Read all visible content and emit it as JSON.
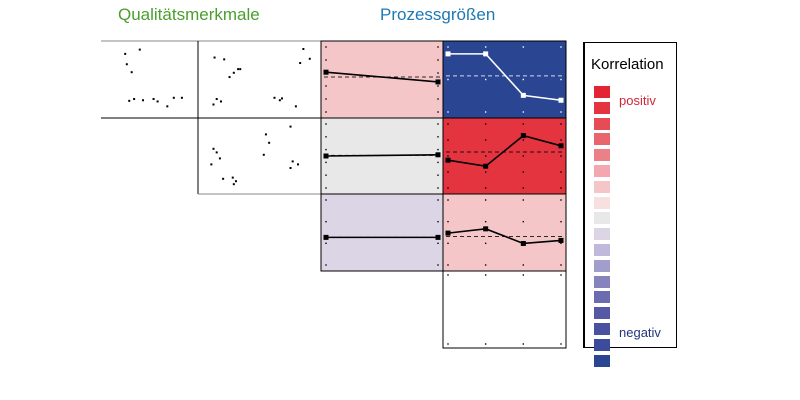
{
  "headings": {
    "quality": "Qualitätsmerkmale",
    "process": "Prozessgrößen"
  },
  "colors": {
    "quality_heading": "#4a9e2e",
    "process_heading": "#1d79b3",
    "positive_label": "#d0253a",
    "negative_label": "#23347e",
    "line": "#000000",
    "strong_negative_line": "#ffffff"
  },
  "matrix": {
    "scatter_cells": [
      {
        "id": "r1c1",
        "points": [
          [
            0.2,
            0.92
          ],
          [
            0.38,
            0.99
          ],
          [
            0.22,
            0.75
          ],
          [
            0.28,
            0.62
          ],
          [
            0.25,
            0.15
          ],
          [
            0.31,
            0.18
          ],
          [
            0.42,
            0.16
          ],
          [
            0.55,
            0.18
          ],
          [
            0.6,
            0.14
          ],
          [
            0.8,
            0.2
          ],
          [
            0.9,
            0.2
          ],
          [
            0.72,
            0.06
          ]
        ]
      },
      {
        "id": "r1c2",
        "points": [
          [
            0.08,
            0.86
          ],
          [
            0.17,
            0.83
          ],
          [
            0.3,
            0.67
          ],
          [
            0.26,
            0.61
          ],
          [
            0.32,
            0.67
          ],
          [
            0.22,
            0.54
          ],
          [
            0.1,
            0.18
          ],
          [
            0.14,
            0.14
          ],
          [
            0.07,
            0.09
          ],
          [
            0.64,
            0.2
          ],
          [
            0.71,
            0.19
          ],
          [
            0.69,
            0.16
          ],
          [
            0.84,
            0.06
          ],
          [
            0.97,
            0.84
          ],
          [
            0.91,
            1.0
          ],
          [
            0.88,
            0.77
          ]
        ]
      },
      {
        "id": "r2c2",
        "points": [
          [
            0.07,
            0.62
          ],
          [
            0.1,
            0.56
          ],
          [
            0.13,
            0.46
          ],
          [
            0.05,
            0.36
          ],
          [
            0.56,
            0.86
          ],
          [
            0.59,
            0.72
          ],
          [
            0.54,
            0.52
          ],
          [
            0.79,
            0.99
          ],
          [
            0.81,
            0.41
          ],
          [
            0.86,
            0.36
          ],
          [
            0.79,
            0.3
          ],
          [
            0.16,
            0.12
          ],
          [
            0.25,
            0.14
          ],
          [
            0.28,
            0.08
          ],
          [
            0.26,
            0.03
          ]
        ]
      }
    ],
    "profile_cells": [
      {
        "id": "r1c3",
        "correlation": 0.25,
        "line": [
          0.62,
          0.46
        ],
        "points_per_column": 6
      },
      {
        "id": "r1c4",
        "correlation": -1.0,
        "line": [
          0.92,
          0.92,
          0.24,
          0.16
        ],
        "points_per_column": 3
      },
      {
        "id": "r2c3",
        "correlation": 0.02,
        "line": [
          0.5,
          0.52
        ],
        "points_per_column": 6
      },
      {
        "id": "r2c4",
        "correlation": 0.85,
        "line": [
          0.43,
          0.33,
          0.84,
          0.67
        ],
        "points_per_column": 5
      },
      {
        "id": "r3c3",
        "correlation": 0.0,
        "line": [
          0.42,
          0.42
        ],
        "points_per_column": 4
      },
      {
        "id": "r3c4",
        "correlation": 0.35,
        "line": [
          0.49,
          0.56,
          0.32,
          0.37
        ],
        "points_per_column": 4
      },
      {
        "id": "r4c4",
        "correlation": null,
        "line": null,
        "points_per_column": 2
      }
    ]
  },
  "legend": {
    "title": "Korrelation",
    "positive_label": "positiv",
    "negative_label": "negativ",
    "scale": [
      "#e32432",
      "#e4343f",
      "#e64c55",
      "#e9646c",
      "#ec8089",
      "#f2a8ae",
      "#f5c6c8",
      "#f8e0e0",
      "#e8e8e9",
      "#dcd5e6",
      "#c0b9db",
      "#a19ecd",
      "#8683bd",
      "#6b6cb0",
      "#5558a5",
      "#4a51a1",
      "#3a4c9b",
      "#2a4591"
    ]
  }
}
